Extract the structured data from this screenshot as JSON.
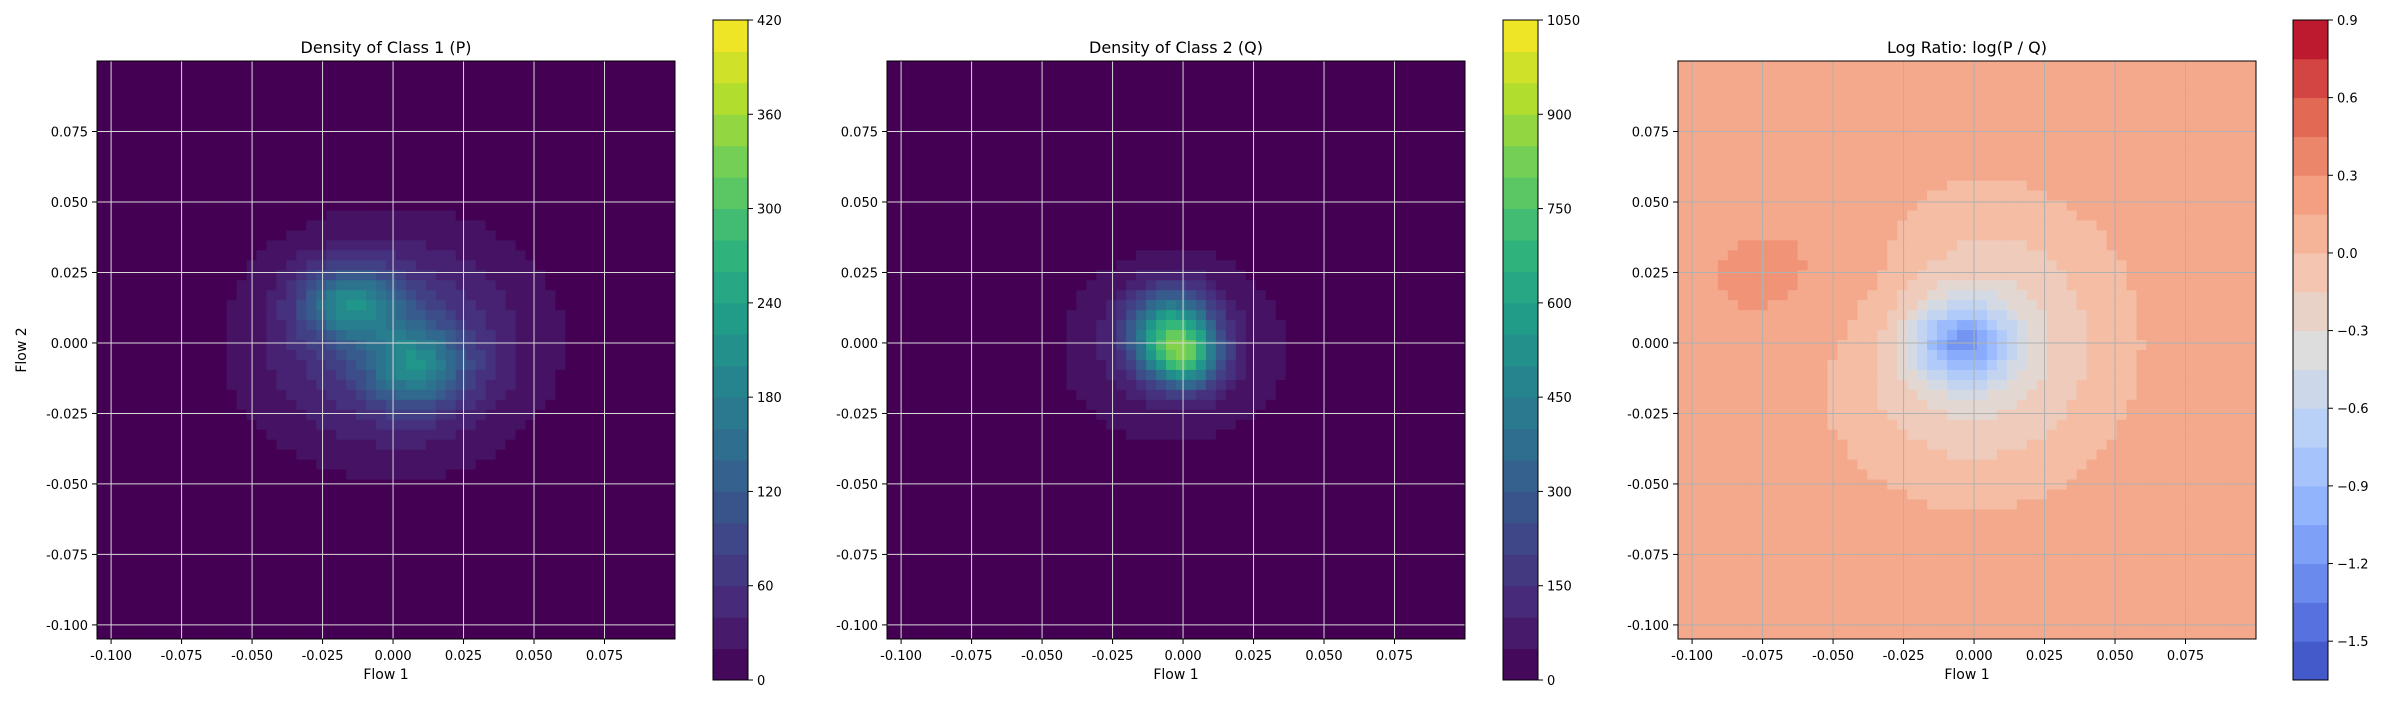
{
  "chart_data": [
    {
      "type": "heatmap",
      "title": "Density of Class 1 (P)",
      "xlabel": "Flow 1",
      "ylabel": "Flow 2",
      "xlim": [
        -0.105,
        0.1
      ],
      "ylim": [
        -0.105,
        0.1
      ],
      "xticks": [
        "-0.100",
        "-0.075",
        "-0.050",
        "-0.025",
        "0.000",
        "0.025",
        "0.050",
        "0.075"
      ],
      "yticks": [
        "-0.100",
        "-0.075",
        "-0.050",
        "-0.025",
        "0.000",
        "0.025",
        "0.050",
        "0.075"
      ],
      "grid": true,
      "colormap": "viridis",
      "background_color": "#440154",
      "colorbar": {
        "range": [
          0,
          420
        ],
        "ticks": [
          "0",
          "60",
          "120",
          "180",
          "240",
          "300",
          "360",
          "420"
        ],
        "levels": 21
      },
      "blobs": [
        {
          "x": 0.0,
          "y": 0.0,
          "sx": 0.035,
          "sy": 0.028,
          "peak": 90
        },
        {
          "x": -0.015,
          "y": 0.014,
          "sx": 0.012,
          "sy": 0.009,
          "peak": 150
        },
        {
          "x": 0.008,
          "y": -0.008,
          "sx": 0.012,
          "sy": 0.01,
          "peak": 140
        }
      ]
    },
    {
      "type": "heatmap",
      "title": "Density of Class 2 (Q)",
      "xlabel": "Flow 1",
      "ylabel": "",
      "xlim": [
        -0.105,
        0.1
      ],
      "ylim": [
        -0.105,
        0.1
      ],
      "xticks": [
        "-0.100",
        "-0.075",
        "-0.050",
        "-0.025",
        "0.000",
        "0.025",
        "0.050",
        "0.075"
      ],
      "yticks": [
        "-0.100",
        "-0.075",
        "-0.050",
        "-0.025",
        "0.000",
        "0.025",
        "0.050",
        "0.075"
      ],
      "grid": true,
      "colormap": "viridis",
      "background_color": "#440154",
      "colorbar": {
        "range": [
          0,
          1050
        ],
        "ticks": [
          "0",
          "150",
          "300",
          "450",
          "600",
          "750",
          "900",
          "1050"
        ],
        "levels": 21
      },
      "blobs": [
        {
          "x": -0.003,
          "y": -0.002,
          "sx": 0.03,
          "sy": 0.025,
          "peak": 120
        },
        {
          "x": -0.004,
          "y": 0.003,
          "sx": 0.01,
          "sy": 0.01,
          "peak": 600
        },
        {
          "x": 0.002,
          "y": -0.006,
          "sx": 0.008,
          "sy": 0.007,
          "peak": 350
        }
      ]
    },
    {
      "type": "heatmap",
      "title": "Log Ratio: log(P / Q)",
      "xlabel": "Flow 1",
      "ylabel": "",
      "xlim": [
        -0.105,
        0.1
      ],
      "ylim": [
        -0.105,
        0.1
      ],
      "xticks": [
        "-0.100",
        "-0.075",
        "-0.050",
        "-0.025",
        "0.000",
        "0.025",
        "0.050",
        "0.075"
      ],
      "yticks": [
        "-0.100",
        "-0.075",
        "-0.050",
        "-0.025",
        "0.000",
        "0.025",
        "0.050",
        "0.075"
      ],
      "grid": true,
      "colormap": "coolwarm",
      "background_color": "#f2bfa6",
      "colorbar": {
        "range": [
          -1.65,
          0.9
        ],
        "ticks": [
          "−1.5",
          "−1.2",
          "−0.9",
          "−0.6",
          "−0.3",
          "0.0",
          "0.3",
          "0.6",
          "0.9"
        ],
        "levels": 17
      },
      "blobs": [
        {
          "x": 0.0,
          "y": 0.0,
          "sx": 0.035,
          "sy": 0.035,
          "peak": -0.55
        },
        {
          "x": -0.004,
          "y": 0.0,
          "sx": 0.012,
          "sy": 0.01,
          "peak": -0.9
        },
        {
          "x": -0.04,
          "y": 0.02,
          "sx": 0.03,
          "sy": 0.02,
          "peak": 0.15
        }
      ]
    }
  ]
}
